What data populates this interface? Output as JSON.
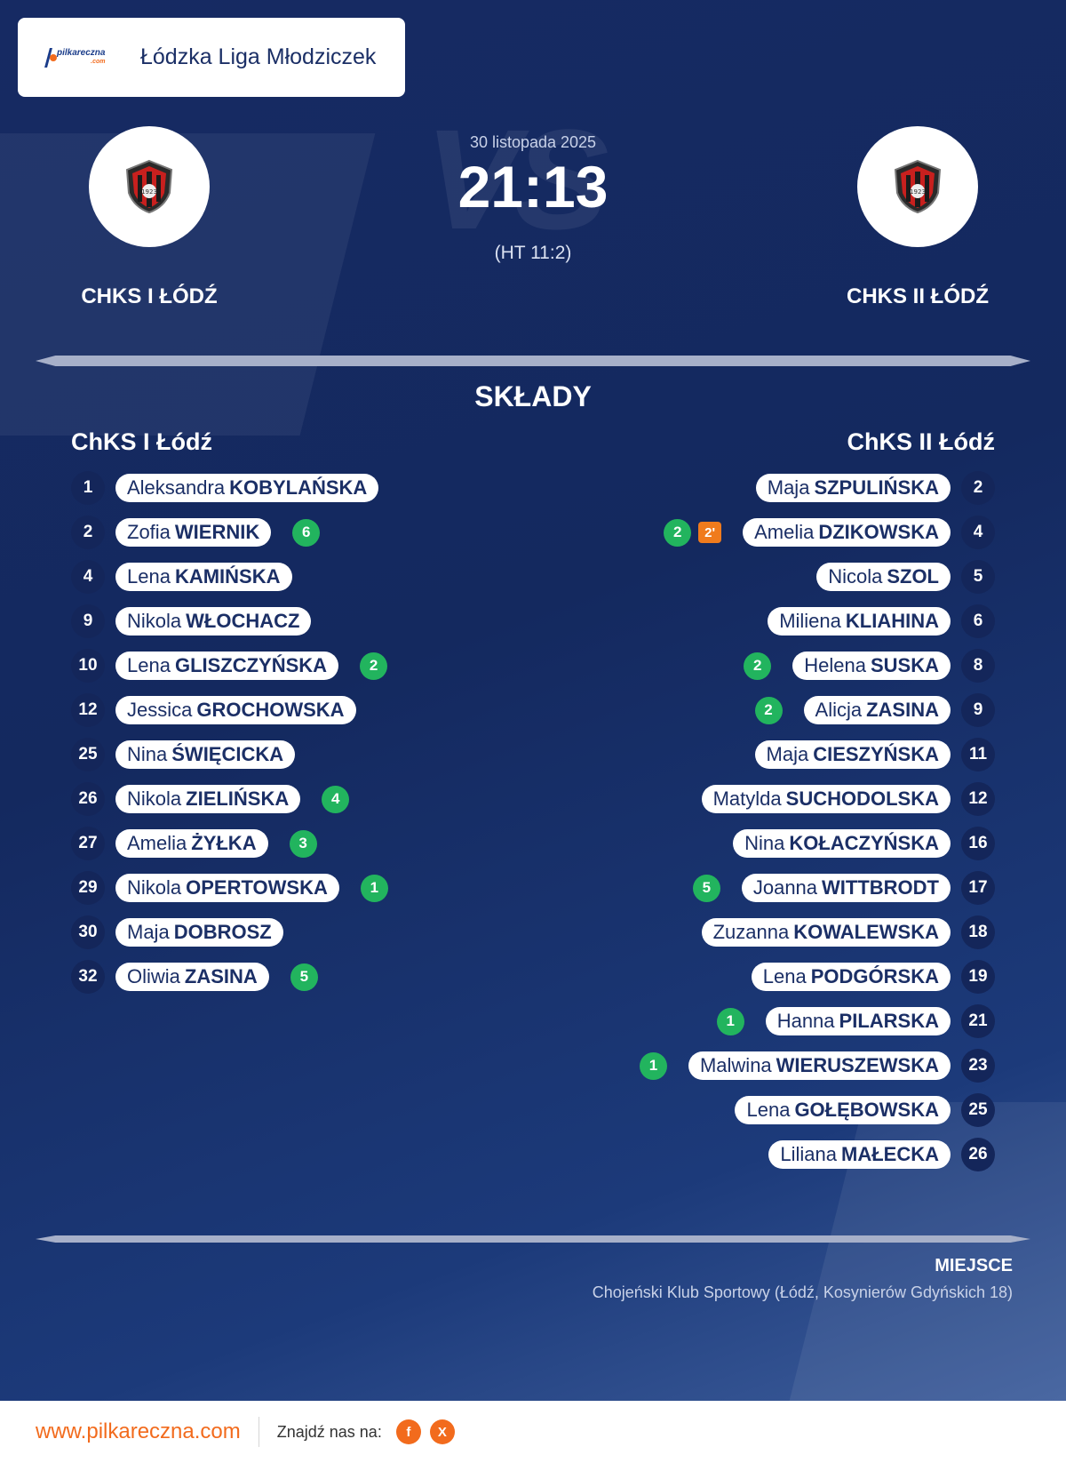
{
  "header": {
    "logo_name": "pilkareczna",
    "logo_domain": ".com",
    "league": "Łódzka Liga Młodziczek"
  },
  "match": {
    "date": "30 listopada 2025",
    "score": "21:13",
    "halftime": "(HT 11:2)",
    "vs_watermark": "VS",
    "home_team": "CHKS I ŁÓDŹ",
    "away_team": "CHKS II ŁÓDŹ",
    "crest_icon": "club-crest-icon"
  },
  "lineups": {
    "title": "SKŁADY",
    "home_title": "ChKS I Łódź",
    "away_title": "ChKS II Łódź",
    "home": [
      {
        "number": "1",
        "first": "Aleksandra",
        "last": "KOBYLAŃSKA",
        "goals": ""
      },
      {
        "number": "2",
        "first": "Zofia",
        "last": "WIERNIK",
        "goals": "6"
      },
      {
        "number": "4",
        "first": "Lena",
        "last": "KAMIŃSKA",
        "goals": ""
      },
      {
        "number": "9",
        "first": "Nikola",
        "last": "WŁOCHACZ",
        "goals": ""
      },
      {
        "number": "10",
        "first": "Lena",
        "last": "GLISZCZYŃSKA",
        "goals": "2"
      },
      {
        "number": "12",
        "first": "Jessica",
        "last": "GROCHOWSKA",
        "goals": ""
      },
      {
        "number": "25",
        "first": "Nina",
        "last": "ŚWIĘCICKA",
        "goals": ""
      },
      {
        "number": "26",
        "first": "Nikola",
        "last": "ZIELIŃSKA",
        "goals": "4"
      },
      {
        "number": "27",
        "first": "Amelia",
        "last": "ŻYŁKA",
        "goals": "3"
      },
      {
        "number": "29",
        "first": "Nikola",
        "last": "OPERTOWSKA",
        "goals": "1"
      },
      {
        "number": "30",
        "first": "Maja",
        "last": "DOBROSZ",
        "goals": ""
      },
      {
        "number": "32",
        "first": "Oliwia",
        "last": "ZASINA",
        "goals": "5"
      }
    ],
    "away": [
      {
        "number": "2",
        "first": "Maja",
        "last": "SZPULIŃSKA",
        "goals": "",
        "suspension": ""
      },
      {
        "number": "4",
        "first": "Amelia",
        "last": "DZIKOWSKA",
        "goals": "2",
        "suspension": "2'"
      },
      {
        "number": "5",
        "first": "Nicola",
        "last": "SZOL",
        "goals": "",
        "suspension": ""
      },
      {
        "number": "6",
        "first": "Miliena",
        "last": "KLIAHINA",
        "goals": "",
        "suspension": ""
      },
      {
        "number": "8",
        "first": "Helena",
        "last": "SUSKA",
        "goals": "2",
        "suspension": ""
      },
      {
        "number": "9",
        "first": "Alicja",
        "last": "ZASINA",
        "goals": "2",
        "suspension": ""
      },
      {
        "number": "11",
        "first": "Maja",
        "last": "CIESZYŃSKA",
        "goals": "",
        "suspension": ""
      },
      {
        "number": "12",
        "first": "Matylda",
        "last": "SUCHODOLSKA",
        "goals": "",
        "suspension": ""
      },
      {
        "number": "16",
        "first": "Nina",
        "last": "KOŁACZYŃSKA",
        "goals": "",
        "suspension": ""
      },
      {
        "number": "17",
        "first": "Joanna",
        "last": "WITTBRODT",
        "goals": "5",
        "suspension": ""
      },
      {
        "number": "18",
        "first": "Zuzanna",
        "last": "KOWALEWSKA",
        "goals": "",
        "suspension": ""
      },
      {
        "number": "19",
        "first": "Lena",
        "last": "PODGÓRSKA",
        "goals": "",
        "suspension": ""
      },
      {
        "number": "21",
        "first": "Hanna",
        "last": "PILARSKA",
        "goals": "1",
        "suspension": ""
      },
      {
        "number": "23",
        "first": "Malwina",
        "last": "WIERUSZEWSKA",
        "goals": "1",
        "suspension": ""
      },
      {
        "number": "25",
        "first": "Lena",
        "last": "GOŁĘBOWSKA",
        "goals": "",
        "suspension": ""
      },
      {
        "number": "26",
        "first": "Liliana",
        "last": "MAŁECKA",
        "goals": "",
        "suspension": ""
      }
    ]
  },
  "venue": {
    "label": "MIEJSCE",
    "text": "Chojeński Klub Sportowy (Łódź, Kosynierów Gdyńskich 18)"
  },
  "footer": {
    "url": "www.pilkareczna.com",
    "find_us": "Znajdź nas na:",
    "social": [
      {
        "icon": "facebook-icon",
        "glyph": "f"
      },
      {
        "icon": "x-icon",
        "glyph": "X"
      }
    ]
  },
  "colors": {
    "background": "#162a63",
    "accent": "#f26b1d",
    "goal": "#22b45e",
    "suspension": "#f07b1d",
    "number_badge": "#14265a"
  }
}
